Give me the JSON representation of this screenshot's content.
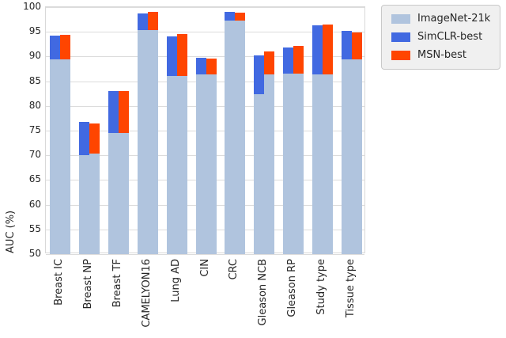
{
  "chart_data": {
    "type": "bar",
    "variant": "paired-stacked-improvement",
    "title": "",
    "xlabel": "",
    "ylabel": "AUC (%)",
    "ylim": [
      50,
      100
    ],
    "yticks": [
      50,
      55,
      60,
      65,
      70,
      75,
      80,
      85,
      90,
      95,
      100
    ],
    "grid": true,
    "legend_position": "upper right, outside axes",
    "categories": [
      "Breast IC",
      "Breast NP",
      "Breast TF",
      "CAMELYON16",
      "Lung AD",
      "CIN",
      "CRC",
      "Gleason NCB",
      "Gleason RP",
      "Study type",
      "Tissue type"
    ],
    "series": [
      {
        "name": "ImageNet-21k",
        "color": "#b0c4de",
        "role": "baseline-segment-both-bars"
      },
      {
        "name": "SimCLR-best",
        "color": "#4169e1",
        "role": "top-segment-left-bar"
      },
      {
        "name": "MSN-best",
        "color": "#ff4500",
        "role": "top-segment-right-bar"
      }
    ],
    "bars": [
      {
        "simclr": {
          "base": 89.5,
          "top": 94.3
        },
        "msn": {
          "base": 89.5,
          "top": 94.4
        }
      },
      {
        "simclr": {
          "base": 70.1,
          "top": 76.7
        },
        "msn": {
          "base": 70.3,
          "top": 76.5
        }
      },
      {
        "simclr": {
          "base": 74.5,
          "top": 83.0
        },
        "msn": {
          "base": 74.5,
          "top": 83.0
        }
      },
      {
        "simclr": {
          "base": 95.4,
          "top": 98.7
        },
        "msn": {
          "base": 95.4,
          "top": 99.0
        }
      },
      {
        "simclr": {
          "base": 86.0,
          "top": 94.0
        },
        "msn": {
          "base": 86.0,
          "top": 94.5
        }
      },
      {
        "simclr": {
          "base": 86.4,
          "top": 89.7
        },
        "msn": {
          "base": 86.4,
          "top": 89.6
        }
      },
      {
        "simclr": {
          "base": 97.2,
          "top": 99.0
        },
        "msn": {
          "base": 97.2,
          "top": 98.8
        }
      },
      {
        "simclr": {
          "base": 82.3,
          "top": 90.3
        },
        "msn": {
          "base": 86.4,
          "top": 91.0
        }
      },
      {
        "simclr": {
          "base": 86.5,
          "top": 91.9
        },
        "msn": {
          "base": 86.5,
          "top": 92.1
        }
      },
      {
        "simclr": {
          "base": 86.3,
          "top": 96.3
        },
        "msn": {
          "base": 86.3,
          "top": 96.5
        }
      },
      {
        "simclr": {
          "base": 89.5,
          "top": 95.2
        },
        "msn": {
          "base": 89.5,
          "top": 94.8
        }
      }
    ]
  }
}
